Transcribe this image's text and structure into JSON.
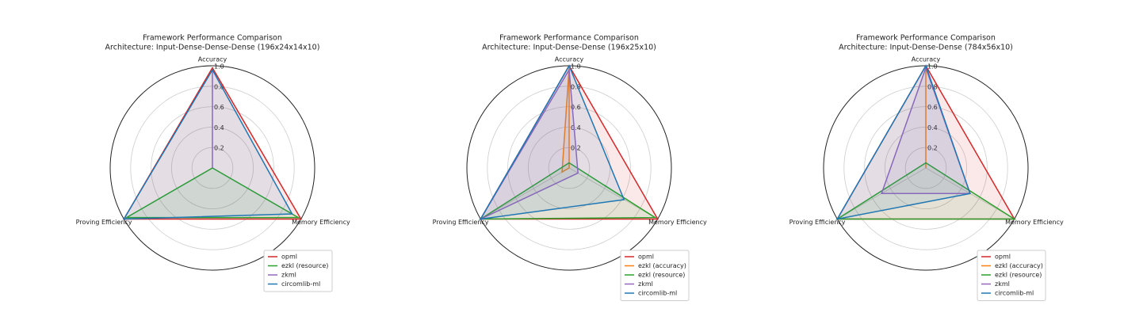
{
  "chart_data": [
    {
      "type": "radar",
      "title": "Framework Performance Comparison",
      "subtitle": "Architecture: Input-Dense-Dense-Dense (196x24x14x10)",
      "categories": [
        "Accuracy",
        "Memory Efficiency",
        "Proving Efficiency"
      ],
      "ylim": [
        0,
        1
      ],
      "yticks": [
        0.2,
        0.4,
        0.6,
        0.8,
        {
          "value": 1,
          "label": "1.0"
        }
      ],
      "grid": true,
      "legend": "lower right",
      "series": [
        {
          "name": "opml",
          "color": "#d62728",
          "values": [
            0.98,
            1.0,
            1.0
          ]
        },
        {
          "name": "ezkl (resource)",
          "color": "#2ca02c",
          "values": [
            0.0,
            0.97,
            0.97
          ]
        },
        {
          "name": "zkml",
          "color": "#9467bd",
          "values": [
            0.96,
            0.0,
            0.0
          ]
        },
        {
          "name": "circomlib-ml",
          "color": "#1f77b4",
          "values": [
            0.96,
            0.9,
            1.0
          ]
        }
      ]
    },
    {
      "type": "radar",
      "title": "Framework Performance Comparison",
      "subtitle": "Architecture: Input-Dense-Dense (196x25x10)",
      "categories": [
        "Accuracy",
        "Memory Efficiency",
        "Proving Efficiency"
      ],
      "ylim": [
        0,
        1
      ],
      "yticks": [
        0.2,
        0.4,
        0.6,
        0.8,
        {
          "value": 1,
          "label": "1.0"
        }
      ],
      "grid": true,
      "legend": "lower right",
      "series": [
        {
          "name": "opml",
          "color": "#d62728",
          "values": [
            1.0,
            1.0,
            1.0
          ]
        },
        {
          "name": "ezkl (accuracy)",
          "color": "#ff7f0e",
          "values": [
            0.98,
            0.0,
            0.08
          ]
        },
        {
          "name": "ezkl (resource)",
          "color": "#2ca02c",
          "values": [
            0.05,
            0.97,
            1.0
          ]
        },
        {
          "name": "zkml",
          "color": "#9467bd",
          "values": [
            0.96,
            0.1,
            1.0
          ]
        },
        {
          "name": "circomlib-ml",
          "color": "#1f77b4",
          "values": [
            1.0,
            0.62,
            1.0
          ]
        }
      ]
    },
    {
      "type": "radar",
      "title": "Framework Performance Comparison",
      "subtitle": "Architecture: Input-Dense-Dense (784x56x10)",
      "categories": [
        "Accuracy",
        "Memory Efficiency",
        "Proving Efficiency"
      ],
      "ylim": [
        0,
        1
      ],
      "yticks": [
        0.2,
        0.4,
        0.6,
        0.8,
        {
          "value": 1,
          "label": "1.0"
        }
      ],
      "grid": true,
      "legend": "lower right",
      "series": [
        {
          "name": "opml",
          "color": "#d62728",
          "values": [
            1.0,
            1.0,
            1.0
          ]
        },
        {
          "name": "ezkl (accuracy)",
          "color": "#ff7f0e",
          "values": [
            0.98,
            0.0,
            0.0
          ]
        },
        {
          "name": "ezkl (resource)",
          "color": "#2ca02c",
          "values": [
            0.05,
            1.0,
            1.0
          ]
        },
        {
          "name": "zkml",
          "color": "#9467bd",
          "values": [
            0.98,
            0.5,
            0.5
          ]
        },
        {
          "name": "circomlib-ml",
          "color": "#1f77b4",
          "values": [
            1.0,
            0.5,
            1.0
          ]
        }
      ]
    }
  ]
}
